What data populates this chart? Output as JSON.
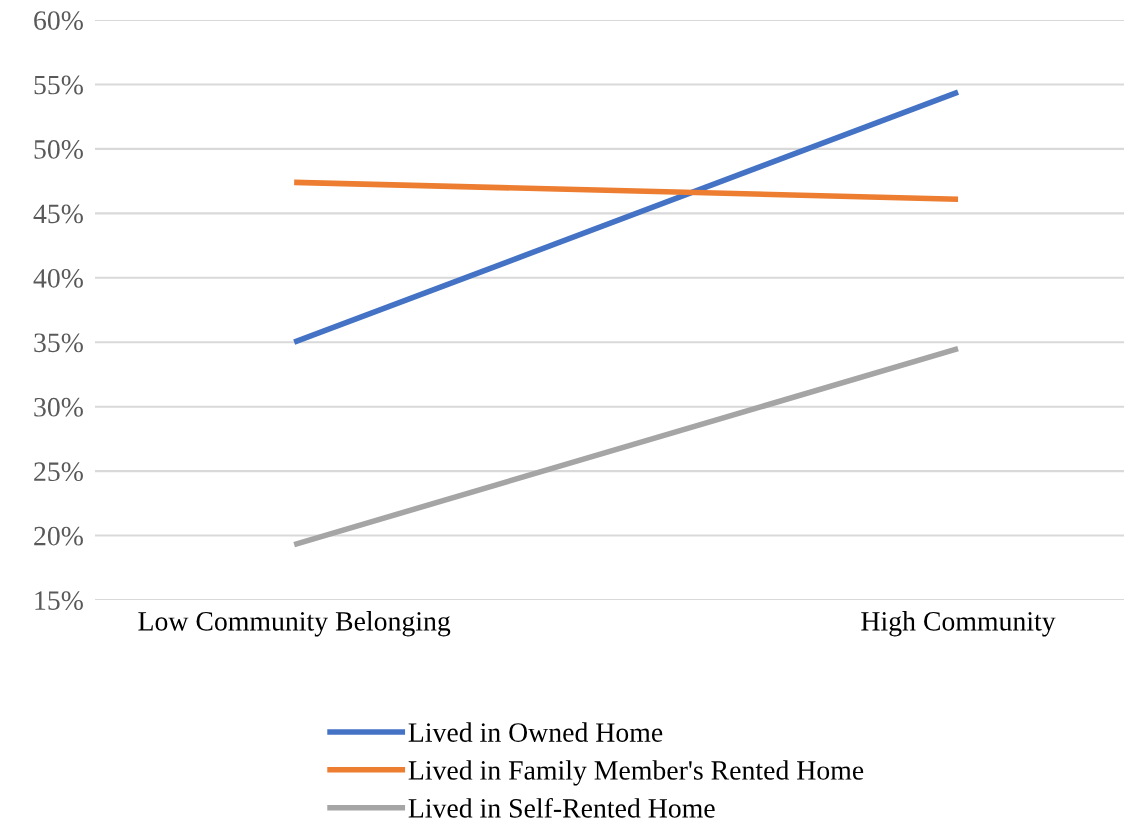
{
  "chart_data": {
    "type": "line",
    "categories": [
      "Low Community Belonging",
      "High Community"
    ],
    "series": [
      {
        "name": "Lived in Owned Home",
        "color": "#4472c4",
        "values": [
          35.0,
          54.4
        ]
      },
      {
        "name": "Lived in Family Member's Rented Home",
        "color": "#ed7d31",
        "values": [
          47.4,
          46.1
        ]
      },
      {
        "name": "Lived in Self-Rented Home",
        "color": "#a5a5a5",
        "values": [
          19.3,
          34.5
        ]
      }
    ],
    "ylim": [
      15,
      60
    ],
    "yticks": [
      {
        "value": 15,
        "label": "15%"
      },
      {
        "value": 20,
        "label": "20%"
      },
      {
        "value": 25,
        "label": "25%"
      },
      {
        "value": 30,
        "label": "30%"
      },
      {
        "value": 35,
        "label": "35%"
      },
      {
        "value": 40,
        "label": "40%"
      },
      {
        "value": 45,
        "label": "45%"
      },
      {
        "value": 50,
        "label": "50%"
      },
      {
        "value": 55,
        "label": "55%"
      },
      {
        "value": 60,
        "label": "60%"
      }
    ],
    "grid": "y",
    "legend": "bottom",
    "marker": "none",
    "line_style": "solid"
  }
}
